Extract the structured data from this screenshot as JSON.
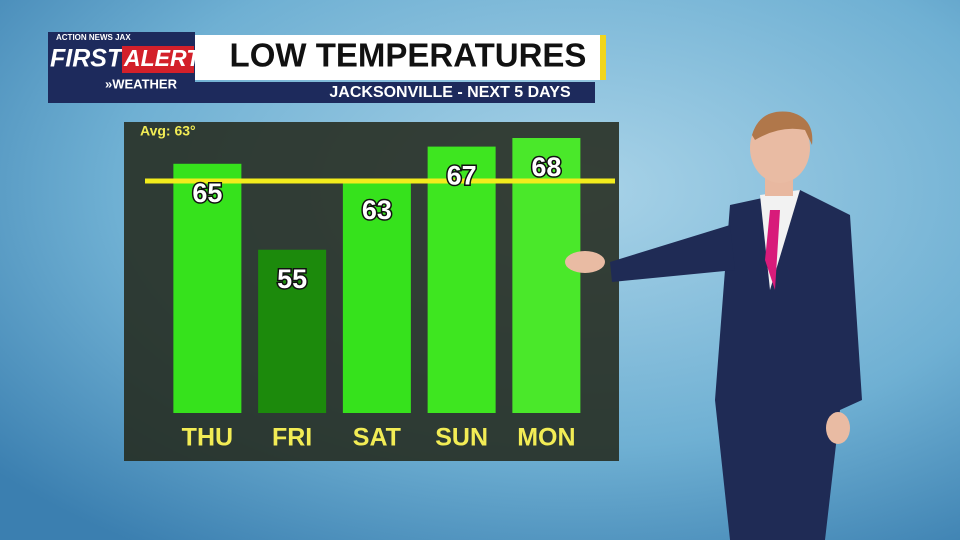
{
  "logo": {
    "network": "ACTION NEWS JAX",
    "first": "FIRST",
    "alert": "ALERT",
    "weather": "»WEATHER"
  },
  "chart_data": {
    "type": "bar",
    "title": "LOW TEMPERATURES",
    "subtitle": "JACKSONVILLE - NEXT 5 DAYS",
    "categories": [
      "THU",
      "FRI",
      "SAT",
      "SUN",
      "MON"
    ],
    "values": [
      65,
      55,
      63,
      67,
      68
    ],
    "colors": [
      "#36e21c",
      "#1c8a0c",
      "#36e21c",
      "#3ee620",
      "#4ae82a"
    ],
    "average": {
      "value": 63,
      "label": "Avg: 63°"
    },
    "ylim": [
      36,
      68
    ]
  }
}
